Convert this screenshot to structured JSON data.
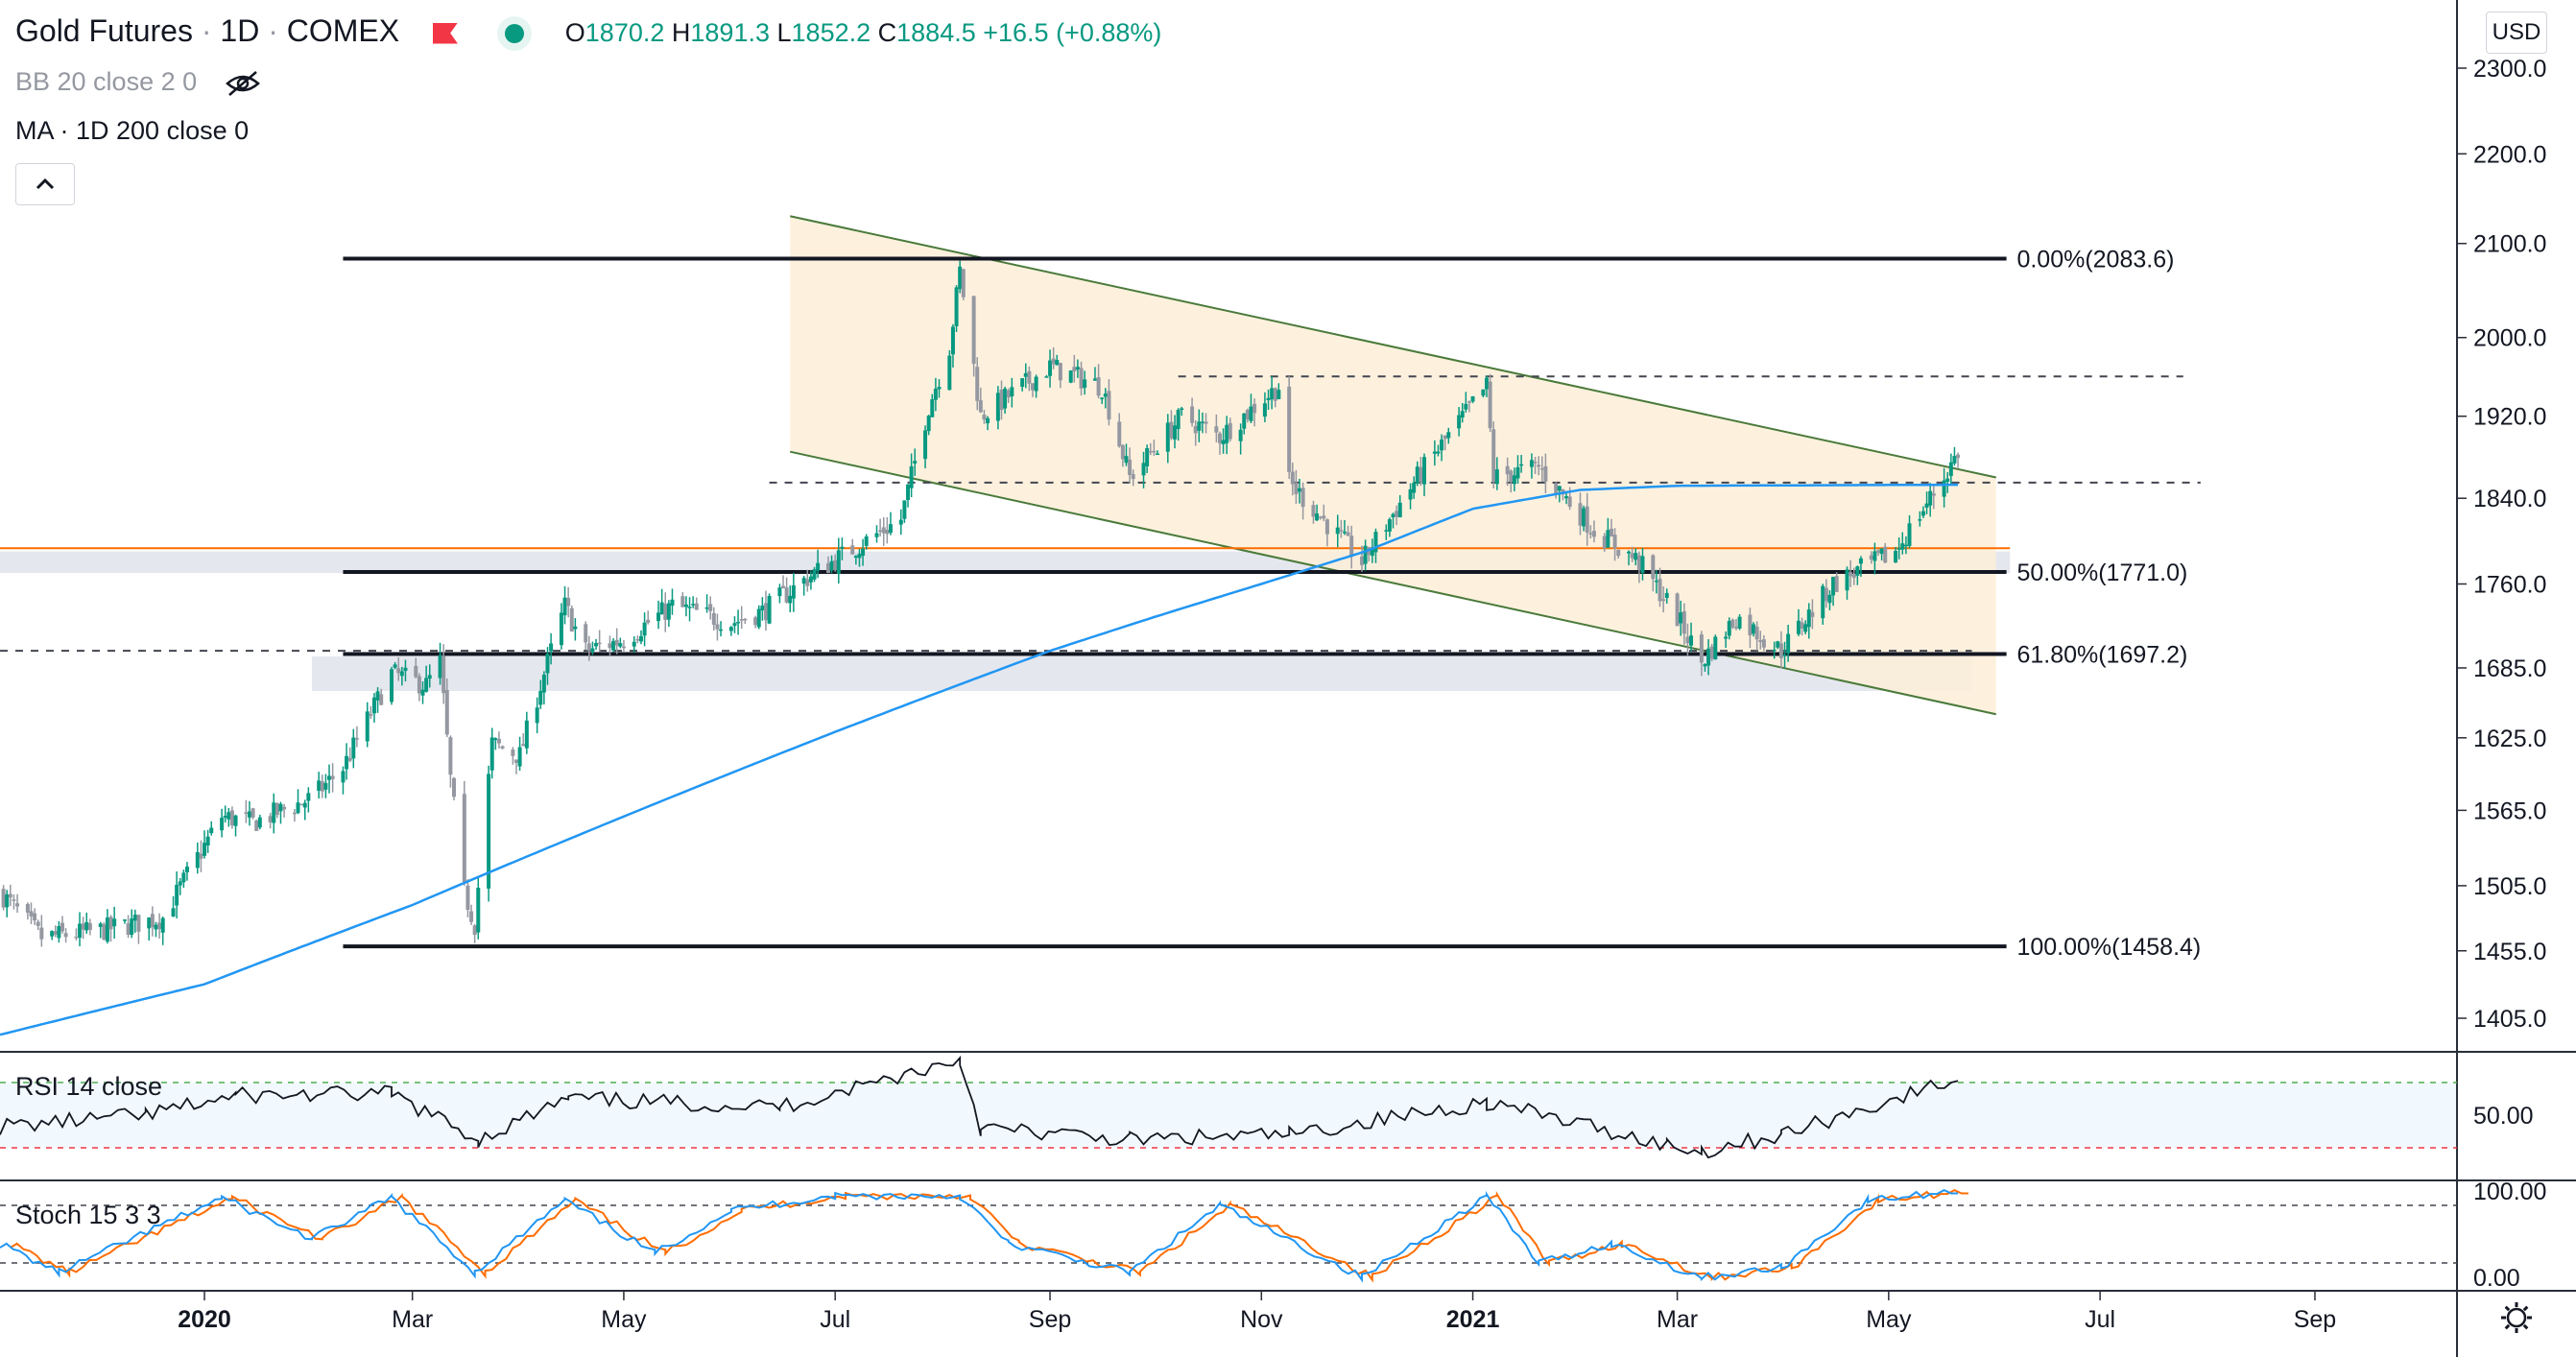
{
  "header": {
    "symbol": "Gold Futures",
    "interval": "1D",
    "exchange": "COMEX",
    "o_label": "O",
    "o": "1870.2",
    "h_label": "H",
    "h": "1891.3",
    "l_label": "L",
    "l": "1852.2",
    "c_label": "C",
    "c": "1884.5",
    "change": "+16.5 (+0.88%)"
  },
  "indicators": {
    "bb": "BB 20 close 2 0",
    "ma": "MA · 1D 200 close 0",
    "rsi": "RSI 14 close",
    "stoch": "Stoch 15 3 3"
  },
  "currency": "USD",
  "colors": {
    "up": "#089981",
    "down": "#9598a1",
    "ma": "#2196f3",
    "channel_fill": "#fdefd8",
    "channel_line": "#4a7a3a",
    "orange_line": "#ff6d00",
    "stoch_k": "#2196f3",
    "stoch_d": "#ff6d00"
  },
  "chart_data": {
    "type": "candlestick",
    "price_axis": {
      "ticks": [
        2300,
        2200,
        2100,
        2000,
        1920,
        1840,
        1760,
        1685,
        1625,
        1565,
        1505,
        1455,
        1405
      ],
      "tick_labels": [
        "2300.0",
        "2200.0",
        "2100.0",
        "2000.0",
        "1920.0",
        "1840.0",
        "1760.0",
        "1685.0",
        "1625.0",
        "1565.0",
        "1505.0",
        "1455.0",
        "1405.0"
      ],
      "scale": "log"
    },
    "time_axis": {
      "labels": [
        "2020",
        "Mar",
        "May",
        "Jul",
        "Sep",
        "Nov",
        "2021",
        "Mar",
        "May",
        "Jul",
        "Sep"
      ],
      "bold": [
        true,
        false,
        false,
        false,
        false,
        false,
        true,
        false,
        false,
        false,
        false
      ],
      "dates": [
        "2020-01-01",
        "2020-03-01",
        "2020-05-01",
        "2020-07-01",
        "2020-09-01",
        "2020-11-01",
        "2021-01-01",
        "2021-03-01",
        "2021-05-01",
        "2021-07-01",
        "2021-09-01"
      ],
      "range": [
        "2019-11-03",
        "2021-10-12"
      ]
    },
    "series": [
      {
        "type": "price",
        "path_dates": [
          "2019-11-03",
          "2019-11-15",
          "2019-12-01",
          "2019-12-20",
          "2020-01-06",
          "2020-01-15",
          "2020-02-01",
          "2020-02-10",
          "2020-02-24",
          "2020-03-05",
          "2020-03-09",
          "2020-03-12",
          "2020-03-16",
          "2020-03-19",
          "2020-03-24",
          "2020-04-01",
          "2020-04-14",
          "2020-04-20",
          "2020-05-01",
          "2020-05-15",
          "2020-06-01",
          "2020-06-10",
          "2020-06-25",
          "2020-07-10",
          "2020-07-20",
          "2020-07-28",
          "2020-08-03",
          "2020-08-06",
          "2020-08-12",
          "2020-08-20",
          "2020-09-01",
          "2020-09-16",
          "2020-09-24",
          "2020-10-09",
          "2020-10-20",
          "2020-11-06",
          "2020-11-09",
          "2020-11-30",
          "2020-12-16",
          "2021-01-05",
          "2021-01-07",
          "2021-01-20",
          "2021-02-05",
          "2021-02-18",
          "2021-03-01",
          "2021-03-08",
          "2021-03-18",
          "2021-03-31",
          "2021-04-15",
          "2021-05-03",
          "2021-05-17",
          "2021-05-21"
        ],
        "path_values": [
          1500,
          1465,
          1470,
          1480,
          1560,
          1555,
          1575,
          1600,
          1680,
          1670,
          1690,
          1590,
          1500,
          1475,
          1620,
          1610,
          1740,
          1700,
          1710,
          1740,
          1725,
          1735,
          1770,
          1800,
          1820,
          1930,
          1990,
          2070,
          1920,
          1940,
          1970,
          1950,
          1860,
          1920,
          1900,
          1950,
          1855,
          1780,
          1860,
          1950,
          1860,
          1870,
          1810,
          1780,
          1730,
          1690,
          1730,
          1700,
          1760,
          1790,
          1860,
          1884.5
        ]
      },
      {
        "name": "MA 200",
        "type": "line",
        "dates": [
          "2019-11-03",
          "2020-01-01",
          "2020-03-01",
          "2020-05-01",
          "2020-07-01",
          "2020-08-01",
          "2020-09-01",
          "2020-10-01",
          "2020-11-01",
          "2020-12-01",
          "2021-01-01",
          "2021-02-01",
          "2021-03-01",
          "2021-05-21"
        ],
        "values": [
          1393,
          1430,
          1490,
          1560,
          1630,
          1665,
          1700,
          1730,
          1760,
          1790,
          1830,
          1848,
          1852,
          1853
        ]
      },
      {
        "name": "RSI 14",
        "type": "line",
        "dates": [
          "2019-11-03",
          "2019-12-15",
          "2020-01-10",
          "2020-02-24",
          "2020-03-20",
          "2020-04-15",
          "2020-06-15",
          "2020-08-06",
          "2020-08-12",
          "2020-09-24",
          "2020-11-09",
          "2021-01-05",
          "2021-02-26",
          "2021-03-08",
          "2021-03-31",
          "2021-05-21"
        ],
        "values": [
          43,
          50,
          62,
          63,
          35,
          60,
          55,
          84,
          42,
          35,
          38,
          58,
          32,
          28,
          38,
          72
        ]
      },
      {
        "name": "Stoch %K",
        "type": "line",
        "dates": [
          "2019-11-03",
          "2019-11-20",
          "2020-01-06",
          "2020-02-01",
          "2020-02-24",
          "2020-03-19",
          "2020-04-14",
          "2020-05-10",
          "2020-06-01",
          "2020-07-01",
          "2020-08-06",
          "2020-08-20",
          "2020-09-24",
          "2020-10-20",
          "2020-11-30",
          "2021-01-05",
          "2021-01-20",
          "2021-02-10",
          "2021-03-08",
          "2021-03-31",
          "2021-04-25",
          "2021-05-21"
        ],
        "values": [
          40,
          10,
          88,
          45,
          88,
          10,
          85,
          30,
          75,
          90,
          90,
          40,
          10,
          80,
          5,
          90,
          20,
          40,
          5,
          15,
          85,
          95
        ]
      }
    ],
    "annotations": [
      {
        "type": "fib",
        "label": "0.00%(2083.6)",
        "value": 2083.6
      },
      {
        "type": "fib",
        "label": "50.00%(1771.0)",
        "value": 1771.0
      },
      {
        "type": "fib",
        "label": "61.80%(1697.2)",
        "value": 1697.2
      },
      {
        "type": "fib",
        "label": "100.00%(1458.4)",
        "value": 1458.4
      },
      {
        "type": "hline",
        "style": "orange",
        "value": 1793
      },
      {
        "type": "dashed",
        "value": 1960
      },
      {
        "type": "dashed",
        "value": 1855
      },
      {
        "type": "dashed",
        "value": 1700
      },
      {
        "type": "zone",
        "from": 1770,
        "to": 1790
      },
      {
        "type": "zone",
        "from": 1665,
        "to": 1695
      },
      {
        "type": "channel",
        "upper_start": [
          "2020-06-18",
          2130
        ],
        "upper_end": [
          "2021-06-01",
          1860
        ],
        "lower_start": [
          "2020-06-18",
          1885
        ],
        "lower_end": [
          "2021-06-01",
          1645
        ]
      }
    ],
    "rsi_axis": {
      "labels": [
        "50.00"
      ],
      "upper": 70,
      "lower": 30
    },
    "stoch_axis": {
      "labels": [
        "100.00",
        "0.00"
      ],
      "upper": 80,
      "lower": 20
    }
  }
}
